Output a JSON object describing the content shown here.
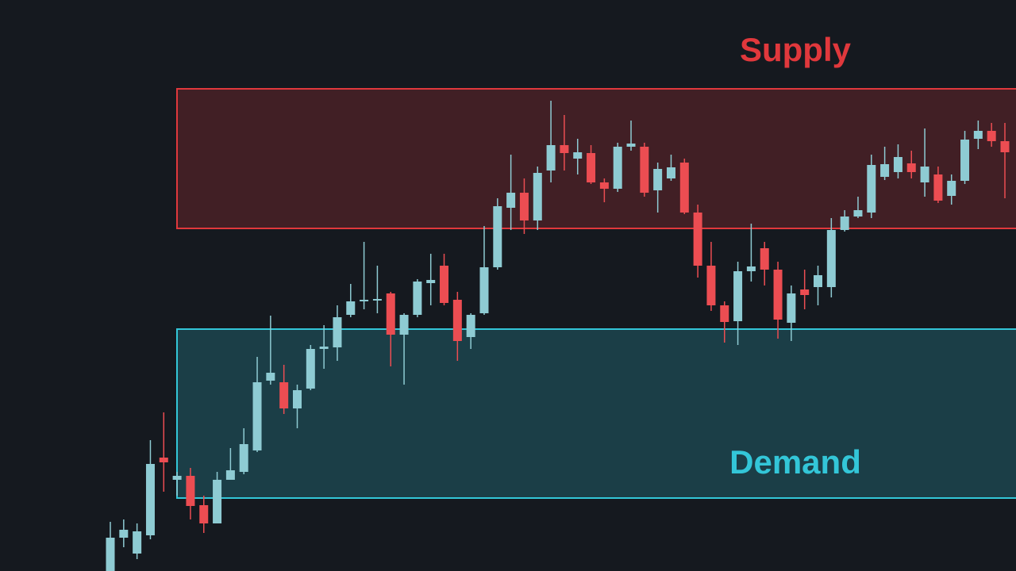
{
  "chart_data": {
    "type": "candlestick",
    "ylim": [
      0,
      720
    ],
    "up_color": "#8ecbd3",
    "down_color": "#ec4d52",
    "zones": [
      {
        "label": "Supply",
        "low": 432,
        "high": 608,
        "color": "#e0383c"
      },
      {
        "label": "Demand",
        "low": 92,
        "high": 305,
        "color": "#33c6d8"
      }
    ],
    "open": [
      0,
      42,
      22,
      45,
      143,
      115,
      120,
      83,
      60,
      115,
      125,
      152,
      240,
      238,
      205,
      230,
      280,
      282,
      323,
      340,
      342,
      350,
      298,
      323,
      363,
      385,
      342,
      295,
      325,
      383,
      458,
      477,
      442,
      505,
      537,
      520,
      527,
      490,
      482,
      535,
      535,
      480,
      495,
      515,
      452,
      385,
      335,
      315,
      378,
      407,
      380,
      313,
      355,
      358,
      358,
      430,
      447,
      452,
      497,
      503,
      514,
      490,
      500,
      473,
      492,
      545,
      555,
      542
    ],
    "high": [
      62,
      65,
      60,
      165,
      200,
      125,
      130,
      95,
      125,
      155,
      180,
      270,
      322,
      260,
      235,
      285,
      310,
      335,
      362,
      415,
      385,
      352,
      325,
      368,
      400,
      400,
      352,
      325,
      435,
      470,
      525,
      495,
      510,
      593,
      575,
      545,
      537,
      495,
      540,
      568,
      540,
      515,
      525,
      520,
      462,
      415,
      340,
      390,
      438,
      415,
      390,
      360,
      380,
      385,
      445,
      455,
      472,
      525,
      535,
      538,
      530,
      558,
      510,
      500,
      555,
      568,
      565,
      565
    ],
    "low": [
      0,
      30,
      15,
      40,
      100,
      95,
      65,
      48,
      60,
      115,
      122,
      150,
      235,
      198,
      180,
      228,
      255,
      265,
      320,
      330,
      325,
      258,
      235,
      320,
      335,
      335,
      265,
      280,
      323,
      380,
      430,
      425,
      430,
      490,
      505,
      500,
      488,
      465,
      478,
      530,
      472,
      452,
      492,
      450,
      370,
      328,
      288,
      285,
      365,
      360,
      293,
      290,
      330,
      335,
      345,
      428,
      445,
      445,
      493,
      495,
      495,
      472,
      464,
      462,
      488,
      532,
      535,
      470
    ],
    "close": [
      42,
      52,
      50,
      135,
      137,
      120,
      82,
      60,
      115,
      127,
      160,
      238,
      250,
      205,
      228,
      280,
      283,
      320,
      340,
      342,
      343,
      298,
      323,
      365,
      367,
      338,
      290,
      323,
      383,
      460,
      477,
      442,
      502,
      537,
      527,
      528,
      490,
      482,
      535,
      539,
      477,
      507,
      509,
      452,
      385,
      335,
      314,
      378,
      384,
      380,
      317,
      350,
      348,
      373,
      430,
      447,
      455,
      512,
      513,
      522,
      503,
      510,
      467,
      492,
      544,
      555,
      542,
      528
    ]
  }
}
